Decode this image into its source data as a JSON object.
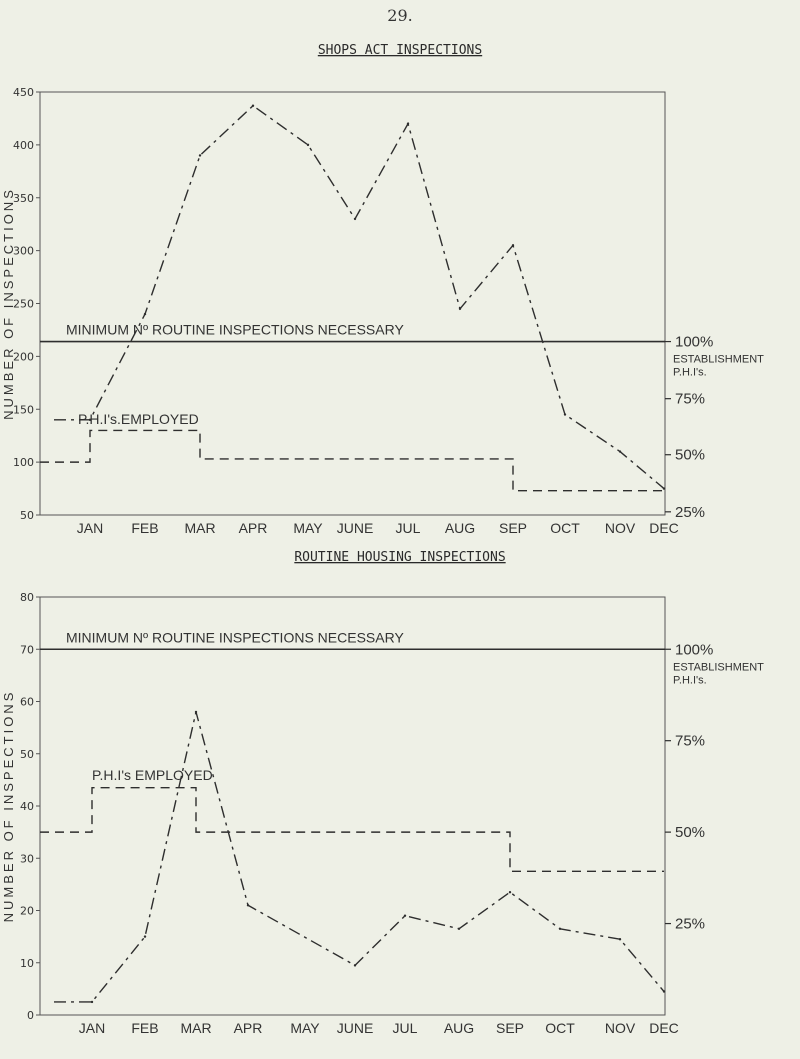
{
  "page": {
    "number": "29."
  },
  "colors": {
    "ink": "#2e2e2e",
    "frame": "#555555",
    "paper": "#eef0e6"
  },
  "chart_data": [
    {
      "type": "line",
      "title": "SHOPS ACT INSPECTIONS",
      "ylabel": "NUMBER OF INSPECTIONS",
      "categories": [
        "JAN",
        "FEB",
        "MAR",
        "APR",
        "MAY",
        "JUNE",
        "JUL",
        "AUG",
        "SEP",
        "OCT",
        "NOV",
        "DEC"
      ],
      "ylim": [
        50,
        450
      ],
      "yticks": [
        50,
        100,
        150,
        200,
        250,
        300,
        350,
        400,
        450
      ],
      "inspections": [
        140,
        240,
        390,
        437,
        400,
        330,
        420,
        245,
        305,
        145,
        110,
        75
      ],
      "employed": [
        100,
        130,
        130,
        103,
        103,
        103,
        103,
        103,
        103,
        73,
        73,
        73
      ],
      "minimum_level": 214,
      "minimum_label": "MINIMUM Nº ROUTINE INSPECTIONS NECESSARY",
      "employed_label": "P.H.I's.EMPLOYED",
      "right_axis": [
        {
          "label": "100%",
          "value": 214
        },
        {
          "label": "75%",
          "value": 160
        },
        {
          "label": "50%",
          "value": 107
        },
        {
          "label": "25%",
          "value": 53
        }
      ],
      "establishment_label": [
        "ESTABLISHMENT",
        "P.H.I's."
      ]
    },
    {
      "type": "line",
      "title": "ROUTINE HOUSING INSPECTIONS",
      "ylabel": "NUMBER OF INSPECTIONS",
      "categories": [
        "JAN",
        "FEB",
        "MAR",
        "APR",
        "MAY",
        "JUNE",
        "JUL",
        "AUG",
        "SEP",
        "OCT",
        "NOV",
        "DEC"
      ],
      "ylim": [
        0,
        80
      ],
      "yticks": [
        0,
        10,
        20,
        30,
        40,
        50,
        60,
        70,
        80
      ],
      "inspections": [
        2.5,
        15,
        58,
        21,
        9.5,
        19,
        16.5,
        23.5,
        16.5,
        14.5,
        4.5
      ],
      "inspections_x": [
        0,
        1,
        2,
        3,
        5,
        6,
        7,
        8,
        9,
        10,
        11
      ],
      "employed": [
        35,
        43.5,
        43.5,
        35,
        35,
        35,
        35,
        35,
        35,
        27.5,
        27.5,
        27.5
      ],
      "minimum_level": 70,
      "minimum_label": "MINIMUM Nº ROUTINE INSPECTIONS NECESSARY",
      "employed_label": "P.H.I's EMPLOYED",
      "right_axis": [
        {
          "label": "100%",
          "value": 70
        },
        {
          "label": "75%",
          "value": 52.5
        },
        {
          "label": "50%",
          "value": 35
        },
        {
          "label": "25%",
          "value": 17.5
        }
      ],
      "establishment_label": [
        "ESTABLISHMENT",
        "P.H.I's."
      ]
    }
  ]
}
